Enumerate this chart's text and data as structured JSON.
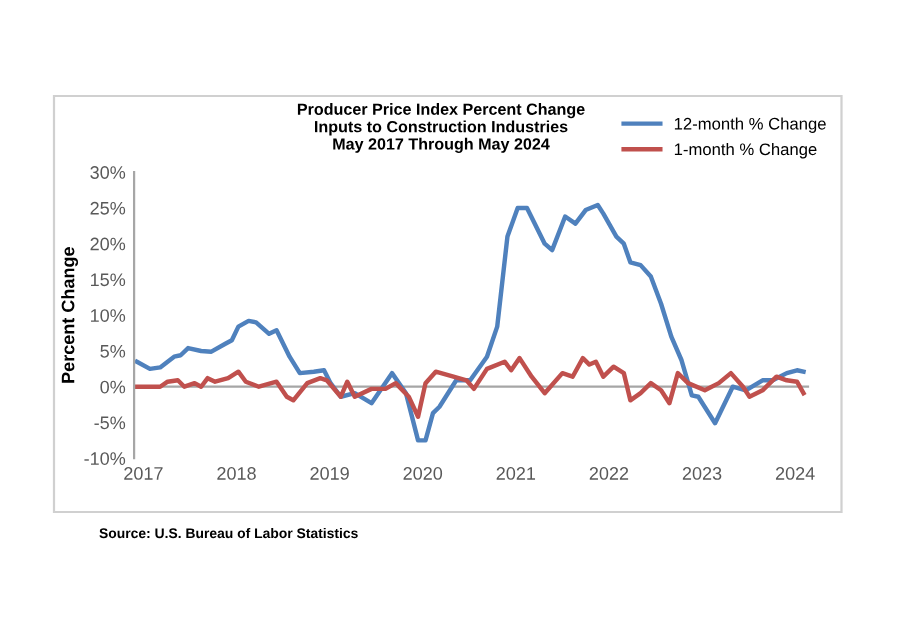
{
  "chart_data": {
    "type": "line",
    "title": "Producer Price Index Percent Change\nInputs to Construction Industries\nMay 2017 Through May 2024",
    "ylabel": "Percent Change",
    "annotations": [
      "Source: U.S. Bureau of Labor Statistics"
    ],
    "xlim": [
      2016.9,
      2024.15
    ],
    "xticks": [
      2017,
      2018,
      2019,
      2020,
      2021,
      2022,
      2023,
      2024
    ],
    "ylim": [
      -10,
      30
    ],
    "yticks": [
      {
        "value": -10,
        "label": "-10%"
      },
      {
        "value": -5,
        "label": "-5%"
      },
      {
        "value": 0,
        "label": "0%"
      },
      {
        "value": 5,
        "label": "5%"
      },
      {
        "value": 10,
        "label": "10%"
      },
      {
        "value": 15,
        "label": "15%"
      },
      {
        "value": 20,
        "label": "20%"
      },
      {
        "value": 25,
        "label": "25%"
      },
      {
        "value": 30,
        "label": "30%"
      }
    ],
    "ref_lines": [
      {
        "axis": "y",
        "value": 0,
        "color": "#a6a6a6"
      }
    ],
    "grid": false,
    "legend": "top right",
    "marker": "none",
    "line_style": "solid",
    "series": [
      {
        "name": "12-month % Change",
        "color": "#4f81bd",
        "x": [
          2016.93,
          2017.07,
          2017.18,
          2017.33,
          2017.4,
          2017.48,
          2017.62,
          2017.73,
          2017.88,
          2017.95,
          2018.02,
          2018.13,
          2018.21,
          2018.35,
          2018.43,
          2018.57,
          2018.68,
          2018.83,
          2018.94,
          2019.01,
          2019.12,
          2019.27,
          2019.45,
          2019.67,
          2019.82,
          2019.95,
          2020.03,
          2020.11,
          2020.18,
          2020.36,
          2020.51,
          2020.69,
          2020.8,
          2020.91,
          2021.02,
          2021.12,
          2021.31,
          2021.39,
          2021.53,
          2021.64,
          2021.75,
          2021.88,
          2021.94,
          2022.08,
          2022.16,
          2022.23,
          2022.34,
          2022.45,
          2022.56,
          2022.67,
          2022.78,
          2022.89,
          2022.96,
          2023.14,
          2023.33,
          2023.47,
          2023.65,
          2023.76,
          2023.91,
          2024.02,
          2024.09
        ],
        "values": [
          3.5,
          2.5,
          2.7,
          4.2,
          4.4,
          5.4,
          5.0,
          4.9,
          6.0,
          6.5,
          8.4,
          9.2,
          9.0,
          7.4,
          7.9,
          4.2,
          1.9,
          2.1,
          2.3,
          0.5,
          -1.4,
          -0.9,
          -2.3,
          1.9,
          -0.9,
          -7.5,
          -7.5,
          -3.7,
          -2.8,
          0.9,
          0.9,
          4.2,
          8.4,
          21,
          25,
          25,
          20,
          19.1,
          23.8,
          22.8,
          24.7,
          25.4,
          24.2,
          21,
          20,
          17.4,
          17,
          15.4,
          11.6,
          7,
          3.7,
          -1.2,
          -1.4,
          -5.1,
          0,
          -0.5,
          0.9,
          0.9,
          1.9,
          2.3,
          2.1
        ]
      },
      {
        "name": "1-month % Change",
        "color": "#c0504d",
        "x": [
          2016.93,
          2017.18,
          2017.26,
          2017.37,
          2017.44,
          2017.55,
          2017.62,
          2017.69,
          2017.77,
          2017.91,
          2018.02,
          2018.1,
          2018.24,
          2018.43,
          2018.54,
          2018.61,
          2018.76,
          2018.9,
          2018.97,
          2019.12,
          2019.19,
          2019.27,
          2019.45,
          2019.6,
          2019.71,
          2019.85,
          2019.95,
          2020.03,
          2020.14,
          2020.33,
          2020.47,
          2020.55,
          2020.69,
          2020.88,
          2020.95,
          2021.04,
          2021.17,
          2021.31,
          2021.5,
          2021.61,
          2021.72,
          2021.79,
          2021.86,
          2021.94,
          2022.05,
          2022.16,
          2022.23,
          2022.34,
          2022.45,
          2022.56,
          2022.65,
          2022.74,
          2022.85,
          2023.03,
          2023.18,
          2023.31,
          2023.44,
          2023.51,
          2023.65,
          2023.8,
          2023.91,
          2024.02,
          2024.09
        ],
        "values": [
          0,
          0,
          0.7,
          0.9,
          0,
          0.5,
          0,
          1.2,
          0.7,
          1.2,
          2.1,
          0.7,
          0,
          0.7,
          -1.4,
          -1.9,
          0.5,
          1.2,
          0.9,
          -1.4,
          0.7,
          -1.4,
          -0.3,
          -0.3,
          0.5,
          -1.4,
          -4.2,
          0.5,
          2.1,
          1.4,
          0.9,
          -0.3,
          2.5,
          3.5,
          2.3,
          4.0,
          1.4,
          -0.9,
          1.9,
          1.4,
          4.0,
          3.1,
          3.5,
          1.4,
          2.8,
          1.9,
          -1.9,
          -0.9,
          0.5,
          -0.5,
          -2.3,
          1.9,
          0.5,
          -0.5,
          0.5,
          1.9,
          0,
          -1.4,
          -0.5,
          1.4,
          0.9,
          0.7,
          -0.9
        ]
      }
    ]
  }
}
